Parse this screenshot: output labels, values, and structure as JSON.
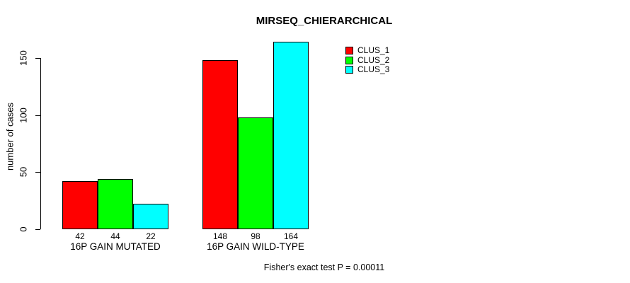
{
  "chart_data": {
    "type": "bar",
    "title": "MIRSEQ_CHIERARCHICAL",
    "ylabel": "number of cases",
    "xlabel": "",
    "categories": [
      "16P GAIN MUTATED",
      "16P GAIN WILD-TYPE"
    ],
    "series": [
      {
        "name": "CLUS_1",
        "color": "#FF0000",
        "values": [
          42,
          148
        ]
      },
      {
        "name": "CLUS_2",
        "color": "#00FF00",
        "values": [
          44,
          98
        ]
      },
      {
        "name": "CLUS_3",
        "color": "#00FFFF",
        "values": [
          22,
          164
        ]
      }
    ],
    "yticks": [
      0,
      50,
      100,
      150
    ],
    "ylim": [
      0,
      164
    ],
    "grid": false,
    "bar_value_labels": true,
    "legend_position": "top-right",
    "annotation": "Fisher's exact test P = 0.00011",
    "background_color": "#FFFFFF",
    "axis_color": "#000000"
  }
}
